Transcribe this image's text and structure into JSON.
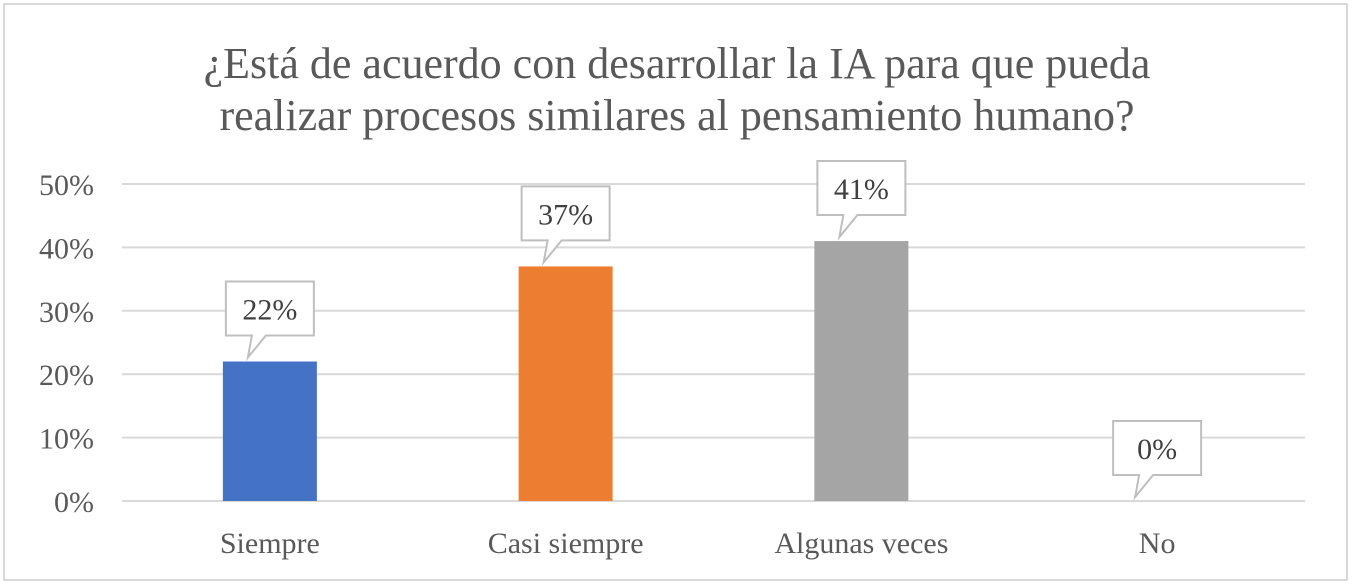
{
  "chart_data": {
    "type": "bar",
    "title_lines": [
      "¿Está de acuerdo con desarrollar la IA para que pueda",
      "realizar procesos similares al pensamiento humano?"
    ],
    "categories": [
      "Siempre",
      "Casi siempre",
      "Algunas veces",
      "No"
    ],
    "values": [
      22,
      37,
      41,
      0
    ],
    "value_labels": [
      "22%",
      "37%",
      "41%",
      "0%"
    ],
    "colors": [
      "#4472c4",
      "#ed7d31",
      "#a5a5a5",
      "#ffc000"
    ],
    "ylim": [
      0,
      50
    ],
    "yticks": [
      0,
      10,
      20,
      30,
      40,
      50
    ],
    "ytick_labels": [
      "0%",
      "10%",
      "20%",
      "30%",
      "40%",
      "50%"
    ],
    "xlabel": "",
    "ylabel": "",
    "grid": true,
    "legend": "none"
  }
}
